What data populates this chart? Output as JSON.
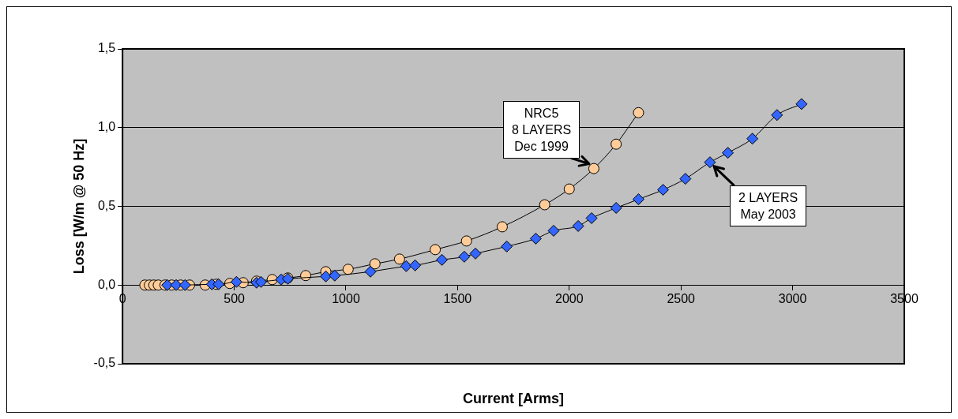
{
  "chart_data": {
    "type": "line",
    "xlabel": "Current [Arms]",
    "ylabel": "Loss [W/m @ 50 Hz]",
    "xlim": [
      0,
      3500
    ],
    "xticks": [
      0,
      500,
      1000,
      1500,
      2000,
      2500,
      3000,
      3500
    ],
    "ylim": [
      -0.5,
      1.5
    ],
    "yticks": [
      {
        "value": -0.5,
        "label": "-0,5"
      },
      {
        "value": 0,
        "label": "0,0"
      },
      {
        "value": 0.5,
        "label": "0,5"
      },
      {
        "value": 1,
        "label": "1,0"
      },
      {
        "value": 1.5,
        "label": "1,5"
      }
    ],
    "grid": "y",
    "legend": false,
    "line_style": "solid",
    "series": [
      {
        "color": "#ffcc99",
        "marker": "circle",
        "x": [
          100,
          120,
          140,
          160,
          190,
          220,
          260,
          300,
          370,
          420,
          480,
          540,
          600,
          670,
          740,
          820,
          910,
          1010,
          1130,
          1240,
          1400,
          1540,
          1700,
          1890,
          2000,
          2110,
          2210,
          2310
        ],
        "values": [
          0,
          0,
          0,
          0,
          0,
          0,
          0,
          0,
          0,
          0.005,
          0.01,
          0.015,
          0.025,
          0.035,
          0.045,
          0.06,
          0.085,
          0.1,
          0.135,
          0.165,
          0.225,
          0.28,
          0.37,
          0.51,
          0.61,
          0.74,
          0.895,
          1.095
        ]
      },
      {
        "color": "#3366ff",
        "marker": "diamond",
        "x": [
          200,
          240,
          280,
          400,
          430,
          510,
          600,
          620,
          710,
          740,
          910,
          950,
          1110,
          1270,
          1310,
          1430,
          1530,
          1580,
          1720,
          1850,
          1930,
          2040,
          2100,
          2210,
          2310,
          2420,
          2520,
          2630,
          2710,
          2820,
          2930,
          3040
        ],
        "values": [
          0,
          0,
          0,
          0.005,
          0.005,
          0.02,
          0.015,
          0.02,
          0.035,
          0.04,
          0.055,
          0.06,
          0.085,
          0.12,
          0.125,
          0.16,
          0.18,
          0.2,
          0.245,
          0.295,
          0.345,
          0.375,
          0.425,
          0.49,
          0.545,
          0.605,
          0.675,
          0.78,
          0.84,
          0.93,
          1.08,
          1.15
        ]
      }
    ],
    "annotations": [
      {
        "text": "NRC5\n8 LAYERS\nDec 1999",
        "x": 2110,
        "y": 0.74
      },
      {
        "text": "2 LAYERS\nMay 2003",
        "x": 2630,
        "y": 0.78
      }
    ]
  }
}
